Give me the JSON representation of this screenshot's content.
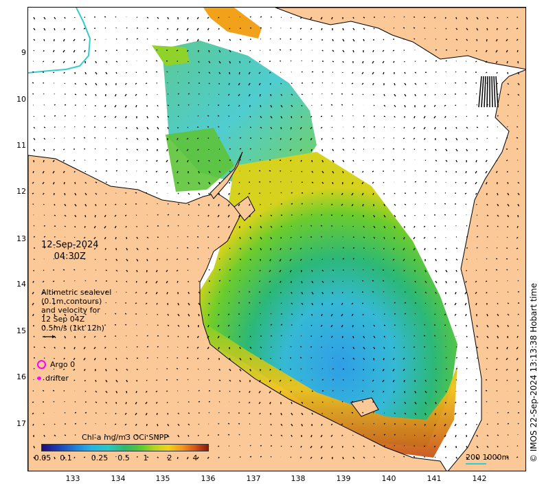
{
  "map": {
    "date": "12-Sep-2024",
    "time": "04:30Z",
    "sealevel_legend": [
      "Altimetric sealevel",
      "(0.1m contours)",
      "and velocity for",
      "12 Sep 04Z",
      "0.5m/s (1kt 12h)"
    ],
    "argo_label": "Argo 0",
    "drifter_label": "drifter",
    "colorbar_title": "Chl-a mg/m3 OCi SNPP",
    "colorbar_ticks": [
      "0.05",
      "0.1",
      "0.25",
      "0.5",
      "1",
      "2",
      "4"
    ],
    "scale_label": "200  1000m",
    "credit": "© IMOS 22-Sep-2024 13:13:38 Hobart time",
    "lat_ticks": [
      "9",
      "10",
      "11",
      "12",
      "13",
      "14",
      "15",
      "16",
      "17"
    ],
    "lon_ticks": [
      "133",
      "134",
      "135",
      "136",
      "137",
      "138",
      "139",
      "140",
      "141",
      "142"
    ],
    "colors": {
      "land": "#fbc897",
      "coast": "#000000",
      "arrow": "#000000",
      "marker": "#ff00ff",
      "scale": "#33cccc"
    }
  }
}
